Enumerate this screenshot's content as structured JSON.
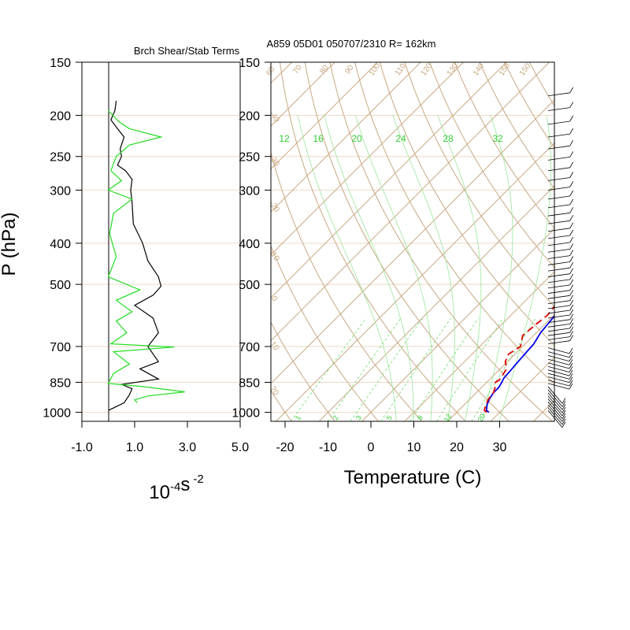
{
  "header": {
    "left_title": "Brch Shear/Stab Terms",
    "right_title": "A859 05D01 050707/2310 R= 162km"
  },
  "colors": {
    "grid_brown": "#c8a882",
    "pressure_line": "#ecd9c4",
    "mixing_ratio_green": "#33cc33",
    "temperature_blue": "#0000ee",
    "dewpoint_red": "#e00000",
    "left_black": "#000000",
    "left_green": "#22dd22"
  },
  "chart_data": [
    {
      "type": "line",
      "title": "Brch Shear/Stab Terms",
      "ylabel": "P (hPa)",
      "xlabel_base": "10",
      "xlabel_exp": "-4",
      "xlabel_unit": "s",
      "xlabel_unit_exp": "-2",
      "y_scale": "log",
      "y_ticks": [
        150,
        200,
        250,
        300,
        400,
        500,
        700,
        850,
        1000
      ],
      "x_ticks": [
        "-1.0",
        "1.0",
        "3.0",
        "5.0"
      ],
      "xlim": [
        -1.0,
        5.0
      ],
      "ylim": [
        1050,
        150
      ],
      "series": [
        {
          "color": "#000000",
          "points": [
            [
              0.3,
              185
            ],
            [
              0.25,
              195
            ],
            [
              0.1,
              205
            ],
            [
              0.35,
              215
            ],
            [
              0.6,
              225
            ],
            [
              0.45,
              240
            ],
            [
              0.5,
              250
            ],
            [
              0.35,
              262
            ],
            [
              0.65,
              270
            ],
            [
              0.9,
              283
            ],
            [
              0.85,
              300
            ],
            [
              0.9,
              320
            ],
            [
              0.95,
              360
            ],
            [
              1.3,
              400
            ],
            [
              1.5,
              440
            ],
            [
              1.9,
              480
            ],
            [
              2.0,
              505
            ],
            [
              1.7,
              530
            ],
            [
              1.0,
              560
            ],
            [
              1.7,
              600
            ],
            [
              1.9,
              650
            ],
            [
              1.5,
              700
            ],
            [
              1.9,
              760
            ],
            [
              1.2,
              790
            ],
            [
              1.9,
              835
            ],
            [
              0.5,
              860
            ],
            [
              0.9,
              880
            ],
            [
              0.8,
              910
            ],
            [
              0.6,
              950
            ],
            [
              0.0,
              990
            ]
          ]
        },
        {
          "color": "#22dd22",
          "points": [
            [
              0.0,
              195
            ],
            [
              0.4,
              207
            ],
            [
              0.8,
              215
            ],
            [
              2.0,
              225
            ],
            [
              0.8,
              235
            ],
            [
              0.3,
              250
            ],
            [
              0.1,
              270
            ],
            [
              0.5,
              285
            ],
            [
              0.0,
              300
            ],
            [
              0.9,
              315
            ],
            [
              0.2,
              340
            ],
            [
              0.05,
              380
            ],
            [
              0.3,
              430
            ],
            [
              0.0,
              480
            ],
            [
              1.2,
              515
            ],
            [
              0.3,
              545
            ],
            [
              0.9,
              580
            ],
            [
              0.3,
              610
            ],
            [
              0.7,
              650
            ],
            [
              0.1,
              690
            ],
            [
              2.5,
              702
            ],
            [
              0.2,
              720
            ],
            [
              0.8,
              770
            ],
            [
              0.2,
              810
            ],
            [
              0.0,
              855
            ],
            [
              1.3,
              870
            ],
            [
              2.9,
              895
            ],
            [
              1.5,
              915
            ],
            [
              1.0,
              935
            ],
            [
              1.1,
              950
            ]
          ]
        }
      ]
    },
    {
      "type": "line",
      "title": "A859 05D01 050707/2310 R= 162km",
      "xlabel": "Temperature (C)",
      "y_scale": "log",
      "y_ticks": [
        150,
        200,
        250,
        300,
        400,
        500,
        700,
        850,
        1000
      ],
      "x_ticks": [
        -20,
        -10,
        0,
        10,
        20,
        30
      ],
      "xlim": [
        -23,
        42
      ],
      "ylim": [
        1050,
        150
      ],
      "isotherm_labels": [
        "-40",
        "-30",
        "-20",
        "-10",
        "0",
        "10",
        "20"
      ],
      "theta_labels": [
        "60",
        "70",
        "80",
        "90",
        "100",
        "110",
        "120",
        "130",
        "140",
        "150"
      ],
      "mixing_upper_labels": [
        "12",
        "16",
        "20",
        "24",
        "28",
        "32"
      ],
      "mixing_lower_labels": [
        "1",
        "2",
        "3",
        "5",
        "8",
        "12",
        "20"
      ],
      "series": [
        {
          "name": "Temperature",
          "color": "#0000ee",
          "points": [
            [
              27.5,
              1000
            ],
            [
              26.5,
              990
            ],
            [
              25.3,
              960
            ],
            [
              24.5,
              930
            ],
            [
              24.0,
              900
            ],
            [
              24.0,
              875
            ],
            [
              23.5,
              850
            ],
            [
              23.0,
              830
            ],
            [
              22.8,
              800
            ],
            [
              22.5,
              760
            ],
            [
              22.2,
              720
            ],
            [
              22.0,
              690
            ],
            [
              21.0,
              650
            ],
            [
              20.4,
              600
            ],
            [
              20.0,
              570
            ],
            [
              19.5,
              530
            ],
            [
              18.5,
              490
            ],
            [
              17.8,
              450
            ],
            [
              16.8,
              410
            ],
            [
              15.8,
              375
            ],
            [
              14.7,
              340
            ],
            [
              13.5,
              310
            ],
            [
              12.2,
              290
            ],
            [
              10.0,
              265
            ],
            [
              7.0,
              235
            ],
            [
              4.5,
              210
            ],
            [
              2.5,
              195
            ],
            [
              0.0,
              180
            ],
            [
              -1.5,
              172
            ]
          ]
        },
        {
          "name": "Dewpoint",
          "color": "#e00000",
          "points": [
            [
              27.0,
              1000
            ],
            [
              26.0,
              990
            ],
            [
              25.0,
              960
            ],
            [
              24.3,
              930
            ],
            [
              24.0,
              900
            ],
            [
              23.0,
              870
            ],
            [
              22.0,
              850
            ],
            [
              22.4,
              840
            ],
            [
              21.5,
              790
            ],
            [
              19.5,
              760
            ],
            [
              18.5,
              730
            ],
            [
              19.5,
              700
            ],
            [
              17.5,
              660
            ],
            [
              18.0,
              620
            ],
            [
              18.5,
              590
            ],
            [
              18.0,
              560
            ],
            [
              17.8,
              520
            ],
            [
              16.8,
              480
            ],
            [
              15.5,
              430
            ],
            [
              14.0,
              390
            ],
            [
              12.8,
              360
            ],
            [
              11.0,
              330
            ],
            [
              9.3,
              300
            ],
            [
              6.5,
              270
            ],
            [
              4.5,
              250
            ],
            [
              2.0,
              230
            ],
            [
              -1.0,
              215
            ],
            [
              -4.0,
              202
            ]
          ]
        }
      ],
      "wind_barbs": "right margin"
    }
  ]
}
